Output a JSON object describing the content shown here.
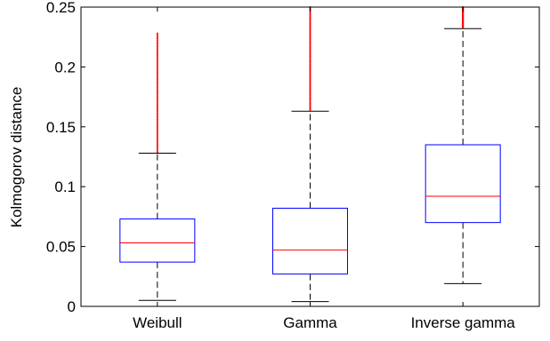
{
  "chart_data": {
    "type": "box",
    "title": "",
    "xlabel": "",
    "ylabel": "Kolmogorov distance",
    "ylim": [
      0,
      0.25
    ],
    "y_ticks": [
      0,
      0.05,
      0.1,
      0.15,
      0.2,
      0.25
    ],
    "y_tick_labels": [
      "0",
      "0.05",
      "0.1",
      "0.15",
      "0.2",
      "0.25"
    ],
    "grid": false,
    "legend": "none",
    "categories": [
      "Weibull",
      "Gamma",
      "Inverse gamma"
    ],
    "boxes": [
      {
        "category": "Weibull",
        "whisker_low": 0.005,
        "q1": 0.037,
        "median": 0.053,
        "q3": 0.073,
        "whisker_high": 0.128,
        "outliers_from": 0.129,
        "outliers_to": 0.228
      },
      {
        "category": "Gamma",
        "whisker_low": 0.004,
        "q1": 0.027,
        "median": 0.047,
        "q3": 0.082,
        "whisker_high": 0.163,
        "outliers_from": 0.164,
        "outliers_to": 0.25
      },
      {
        "category": "Inverse gamma",
        "whisker_low": 0.019,
        "q1": 0.07,
        "median": 0.092,
        "q3": 0.135,
        "whisker_high": 0.232,
        "outliers_from": 0.233,
        "outliers_to": 0.25
      }
    ],
    "colors": {
      "box": "#0000ff",
      "median": "#ff0000",
      "outliers": "#ff0000",
      "whisker": "#000000",
      "axes": "#000000"
    }
  }
}
